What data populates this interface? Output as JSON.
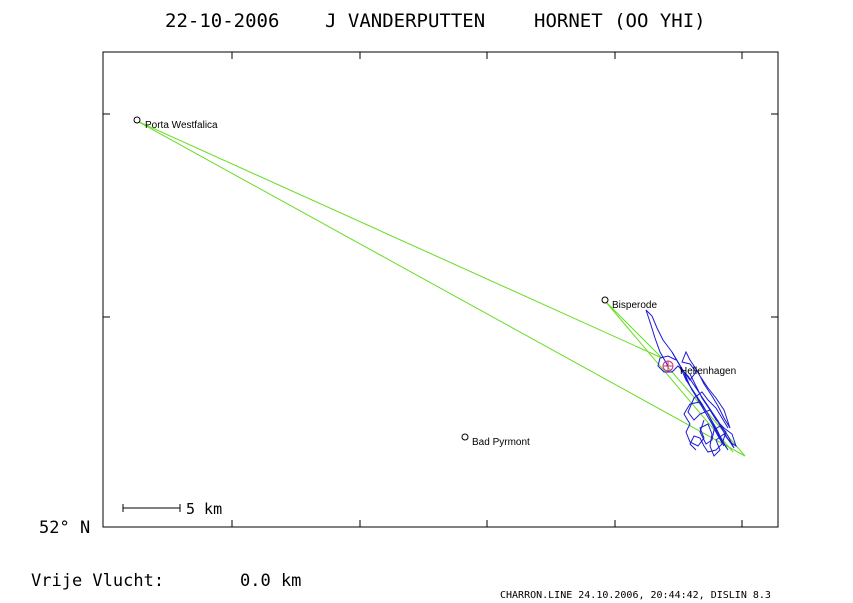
{
  "header": {
    "date": "22-10-2006",
    "pilot": "J VANDERPUTTEN",
    "aircraft": "HORNET (OO YHI)"
  },
  "map": {
    "latitude_label": "52° N",
    "scale_label": "5 km",
    "waypoints": [
      {
        "id": "porta-westfalica",
        "name": "Porta Westfalica"
      },
      {
        "id": "bisperode",
        "name": "Bisperode"
      },
      {
        "id": "hellenhagen",
        "name": "Hellenhagen"
      },
      {
        "id": "bad-pyrmont",
        "name": "Bad Pyrmont"
      }
    ],
    "colors": {
      "task_line": "#66dd22",
      "flight_track": "#1a1ad6",
      "start_marker": "#d42a7a",
      "frame": "#000000"
    }
  },
  "footer": {
    "free_flight_label": "Vrije Vlucht:",
    "free_flight_value": "0.0 km",
    "credit": "CHARRON.LINE 24.10.2006, 20:44:42, DISLIN 8.3"
  }
}
